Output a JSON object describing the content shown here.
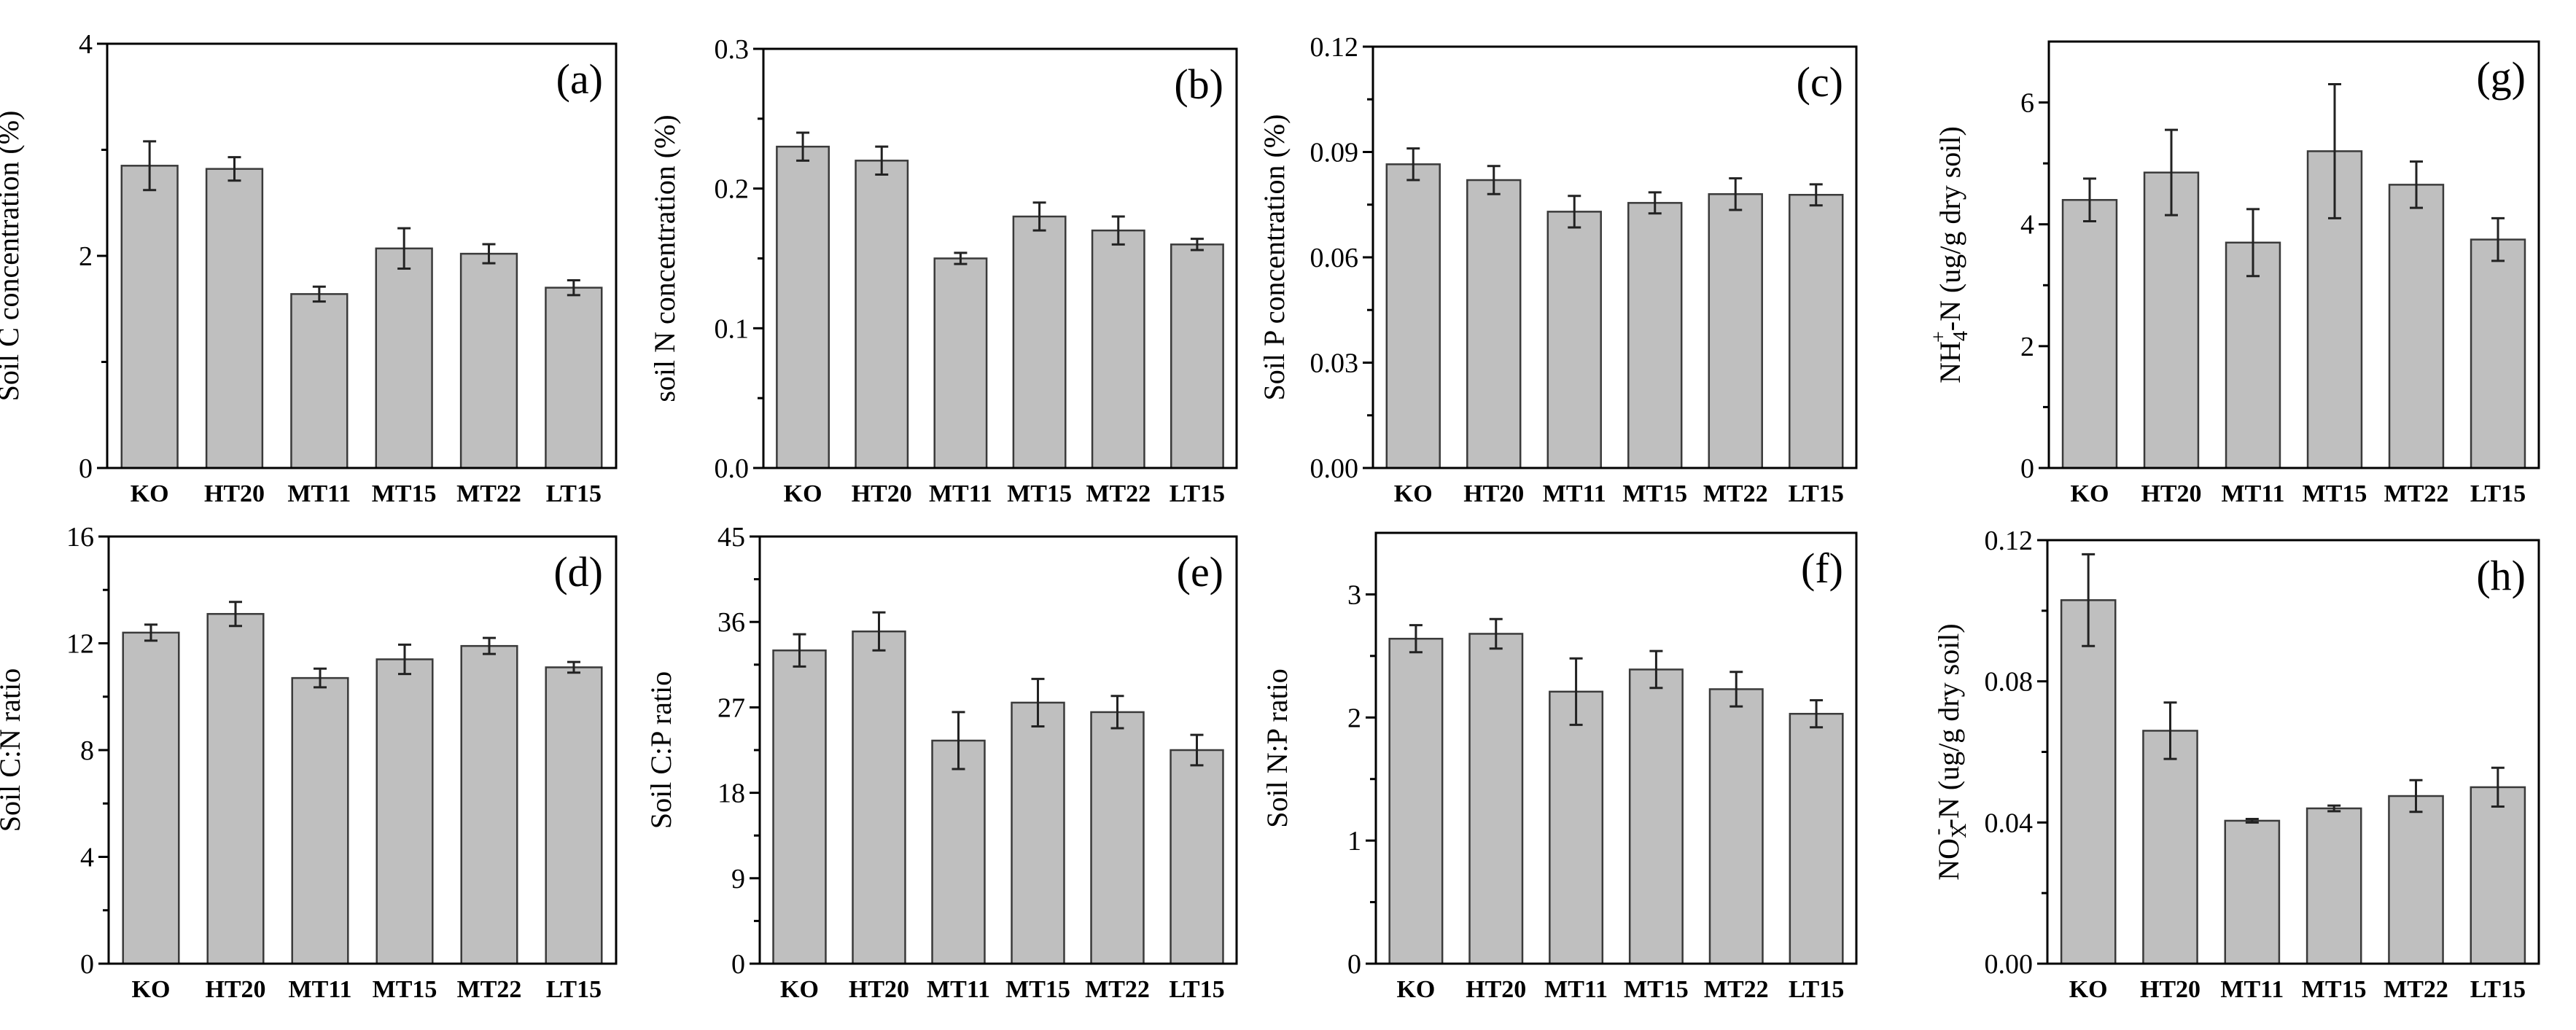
{
  "chart_data": [
    {
      "id": "a",
      "type": "bar",
      "panel_label": "(a)",
      "ylabel": "Soil C concentration (%)",
      "categories": [
        "KO",
        "HT20",
        "MT11",
        "MT15",
        "MT22",
        "LT15"
      ],
      "values": [
        2.85,
        2.82,
        1.64,
        2.07,
        2.02,
        1.7
      ],
      "errors": [
        0.23,
        0.11,
        0.07,
        0.19,
        0.09,
        0.07
      ],
      "ylim": [
        0,
        4
      ],
      "yticks": [
        "0",
        "2",
        "4"
      ]
    },
    {
      "id": "b",
      "type": "bar",
      "panel_label": "(b)",
      "ylabel": "soil N concentration (%)",
      "categories": [
        "KO",
        "HT20",
        "MT11",
        "MT15",
        "MT22",
        "LT15"
      ],
      "values": [
        0.23,
        0.22,
        0.15,
        0.18,
        0.17,
        0.16
      ],
      "errors": [
        0.01,
        0.01,
        0.004,
        0.01,
        0.01,
        0.004
      ],
      "ylim": [
        0,
        0.3
      ],
      "yticks": [
        "0.0",
        "0.1",
        "0.2",
        "0.3"
      ]
    },
    {
      "id": "c",
      "type": "bar",
      "panel_label": "(c)",
      "ylabel": "Soil P concentration (%)",
      "categories": [
        "KO",
        "HT20",
        "MT11",
        "MT15",
        "MT22",
        "LT15"
      ],
      "values": [
        0.0865,
        0.082,
        0.073,
        0.0755,
        0.078,
        0.0778
      ],
      "errors": [
        0.0045,
        0.004,
        0.0045,
        0.003,
        0.0045,
        0.003
      ],
      "ylim": [
        0,
        0.12
      ],
      "yticks": [
        "0.00",
        "0.03",
        "0.06",
        "0.09",
        "0.12"
      ]
    },
    {
      "id": "g",
      "type": "bar",
      "panel_label": "(g)",
      "ylabel_main": "NH",
      "ylabel_sub": "4",
      "ylabel_sup": "+",
      "ylabel_rest": "-N (ug/g dry soil)",
      "categories": [
        "KO",
        "HT20",
        "MT11",
        "MT15",
        "MT22",
        "LT15"
      ],
      "values": [
        4.4,
        4.85,
        3.7,
        5.2,
        4.65,
        3.75
      ],
      "errors": [
        0.35,
        0.7,
        0.55,
        1.1,
        0.38,
        0.35
      ],
      "ylim": [
        0,
        7
      ],
      "yticks": [
        "0",
        "2",
        "4",
        "6"
      ]
    },
    {
      "id": "d",
      "type": "bar",
      "panel_label": "(d)",
      "ylabel": "Soil C:N ratio",
      "categories": [
        "KO",
        "HT20",
        "MT11",
        "MT15",
        "MT22",
        "LT15"
      ],
      "values": [
        12.4,
        13.1,
        10.7,
        11.4,
        11.9,
        11.1
      ],
      "errors": [
        0.3,
        0.45,
        0.35,
        0.55,
        0.3,
        0.2
      ],
      "ylim": [
        0,
        16
      ],
      "yticks": [
        "0",
        "4",
        "8",
        "12",
        "16"
      ]
    },
    {
      "id": "e",
      "type": "bar",
      "panel_label": "(e)",
      "ylabel": "Soil C:P ratio",
      "categories": [
        "KO",
        "HT20",
        "MT11",
        "MT15",
        "MT22",
        "LT15"
      ],
      "values": [
        33.0,
        35.0,
        23.5,
        27.5,
        26.5,
        22.5
      ],
      "errors": [
        1.7,
        2.0,
        3.0,
        2.5,
        1.7,
        1.6
      ],
      "ylim": [
        0,
        45
      ],
      "yticks": [
        "0",
        "9",
        "18",
        "27",
        "36",
        "45"
      ]
    },
    {
      "id": "f",
      "type": "bar",
      "panel_label": "(f)",
      "ylabel": "Soil N:P ratio",
      "categories": [
        "KO",
        "HT20",
        "MT11",
        "MT15",
        "MT22",
        "LT15"
      ],
      "values": [
        2.64,
        2.68,
        2.21,
        2.39,
        2.23,
        2.03
      ],
      "errors": [
        0.11,
        0.12,
        0.27,
        0.15,
        0.14,
        0.11
      ],
      "ylim": [
        0,
        3.5
      ],
      "yticks": [
        "0",
        "1",
        "2",
        "3"
      ]
    },
    {
      "id": "h",
      "type": "bar",
      "panel_label": "(h)",
      "ylabel_main": "NO",
      "ylabel_sub": "X",
      "ylabel_sup": "-",
      "ylabel_rest": "-N (ug/g dry soil)",
      "categories": [
        "KO",
        "HT20",
        "MT11",
        "MT15",
        "MT22",
        "LT15"
      ],
      "values": [
        0.103,
        0.066,
        0.0405,
        0.044,
        0.0475,
        0.05
      ],
      "errors": [
        0.013,
        0.008,
        0.0005,
        0.0008,
        0.0045,
        0.0055
      ],
      "ylim": [
        0,
        0.12
      ],
      "yticks": [
        "0.00",
        "0.04",
        "0.08",
        "0.12"
      ]
    }
  ]
}
